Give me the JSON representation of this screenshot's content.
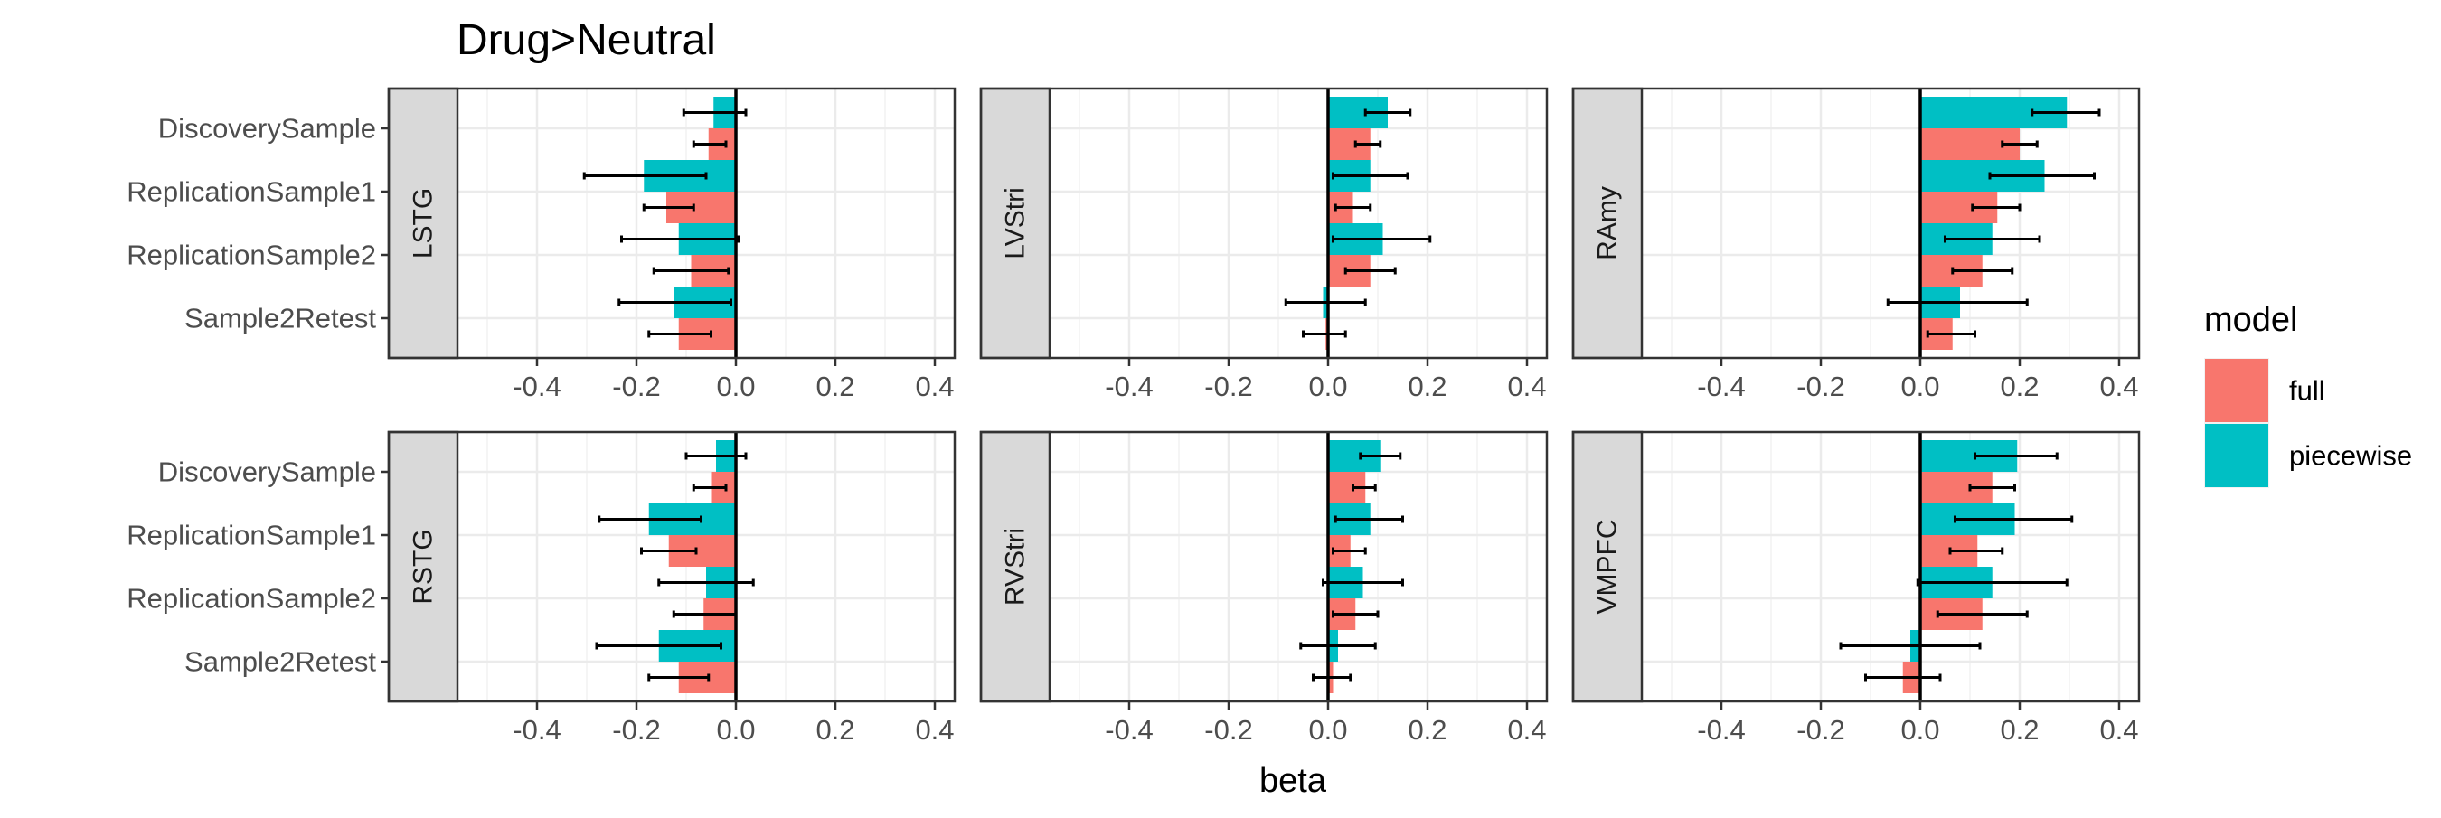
{
  "chart_data": {
    "type": "bar",
    "orientation": "horizontal",
    "title": "Drug>Neutral",
    "xlabel": "beta",
    "ylabel": "",
    "xlim": [
      -0.56,
      0.44
    ],
    "xticks": [
      -0.4,
      -0.2,
      0.0,
      0.2,
      0.4
    ],
    "xtick_labels": [
      "-0.4",
      "-0.2",
      "0.0",
      "0.2",
      "0.4"
    ],
    "categories": [
      "DiscoverySample",
      "ReplicationSample1",
      "ReplicationSample2",
      "Sample2Retest"
    ],
    "grid": true,
    "reference_line": 0,
    "legend": {
      "title": "model",
      "position": "right",
      "entries": [
        {
          "label": "full",
          "color": "#F8766D"
        },
        {
          "label": "piecewise",
          "color": "#00BFC4"
        }
      ]
    },
    "panels": [
      {
        "name": "LSTG",
        "series": [
          {
            "model": "piecewise",
            "values": [
              -0.045,
              -0.185,
              -0.115,
              -0.125
            ],
            "err_low": [
              -0.105,
              -0.305,
              -0.23,
              -0.235
            ],
            "err_high": [
              0.02,
              -0.06,
              0.005,
              -0.01
            ]
          },
          {
            "model": "full",
            "values": [
              -0.055,
              -0.14,
              -0.09,
              -0.115
            ],
            "err_low": [
              -0.085,
              -0.185,
              -0.165,
              -0.175
            ],
            "err_high": [
              -0.02,
              -0.085,
              -0.015,
              -0.05
            ]
          }
        ]
      },
      {
        "name": "LVStri",
        "series": [
          {
            "model": "piecewise",
            "values": [
              0.12,
              0.085,
              0.11,
              -0.01
            ],
            "err_low": [
              0.075,
              0.01,
              0.01,
              -0.085
            ],
            "err_high": [
              0.165,
              0.16,
              0.205,
              0.075
            ]
          },
          {
            "model": "full",
            "values": [
              0.085,
              0.05,
              0.085,
              -0.005
            ],
            "err_low": [
              0.055,
              0.015,
              0.035,
              -0.05
            ],
            "err_high": [
              0.105,
              0.085,
              0.135,
              0.035
            ]
          }
        ]
      },
      {
        "name": "RAmy",
        "series": [
          {
            "model": "piecewise",
            "values": [
              0.295,
              0.25,
              0.145,
              0.08
            ],
            "err_low": [
              0.225,
              0.14,
              0.05,
              -0.065
            ],
            "err_high": [
              0.36,
              0.35,
              0.24,
              0.215
            ]
          },
          {
            "model": "full",
            "values": [
              0.2,
              0.155,
              0.125,
              0.065
            ],
            "err_low": [
              0.165,
              0.105,
              0.065,
              0.015
            ],
            "err_high": [
              0.235,
              0.2,
              0.185,
              0.11
            ]
          }
        ]
      },
      {
        "name": "RSTG",
        "series": [
          {
            "model": "piecewise",
            "values": [
              -0.04,
              -0.175,
              -0.06,
              -0.155
            ],
            "err_low": [
              -0.1,
              -0.275,
              -0.155,
              -0.28
            ],
            "err_high": [
              0.02,
              -0.07,
              0.035,
              -0.03
            ]
          },
          {
            "model": "full",
            "values": [
              -0.05,
              -0.135,
              -0.065,
              -0.115
            ],
            "err_low": [
              -0.085,
              -0.19,
              -0.125,
              -0.175
            ],
            "err_high": [
              -0.02,
              -0.08,
              0.0,
              -0.055
            ]
          }
        ]
      },
      {
        "name": "RVStri",
        "series": [
          {
            "model": "piecewise",
            "values": [
              0.105,
              0.085,
              0.07,
              0.02
            ],
            "err_low": [
              0.065,
              0.015,
              -0.01,
              -0.055
            ],
            "err_high": [
              0.145,
              0.15,
              0.15,
              0.095
            ]
          },
          {
            "model": "full",
            "values": [
              0.075,
              0.045,
              0.055,
              0.01
            ],
            "err_low": [
              0.05,
              0.01,
              0.01,
              -0.03
            ],
            "err_high": [
              0.095,
              0.075,
              0.1,
              0.045
            ]
          }
        ]
      },
      {
        "name": "VMPFC",
        "series": [
          {
            "model": "piecewise",
            "values": [
              0.195,
              0.19,
              0.145,
              -0.02
            ],
            "err_low": [
              0.11,
              0.07,
              -0.005,
              -0.16
            ],
            "err_high": [
              0.275,
              0.305,
              0.295,
              0.12
            ]
          },
          {
            "model": "full",
            "values": [
              0.145,
              0.115,
              0.125,
              -0.035
            ],
            "err_low": [
              0.1,
              0.06,
              0.035,
              -0.11
            ],
            "err_high": [
              0.19,
              0.165,
              0.215,
              0.04
            ]
          }
        ]
      }
    ]
  }
}
